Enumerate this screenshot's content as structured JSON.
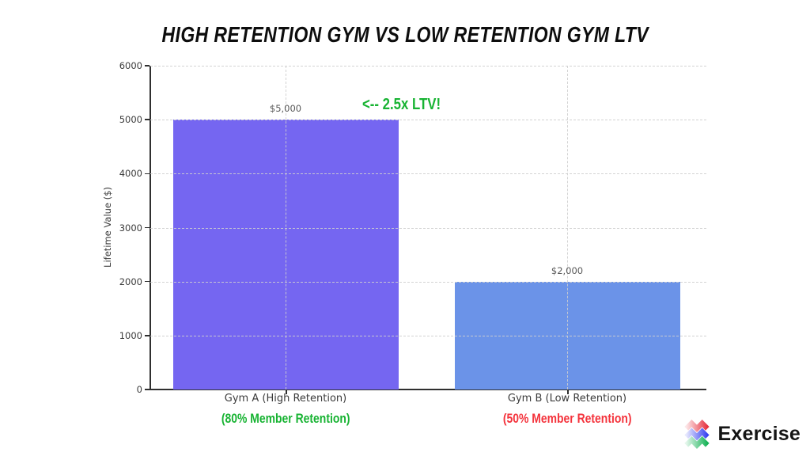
{
  "page": {
    "background": "#ffffff"
  },
  "chart_data": {
    "type": "bar",
    "title": "HIGH RETENTION GYM VS LOW RETENTION GYM LTV",
    "ylabel": "Lifetime Value ($)",
    "xlabel": "",
    "ylim": [
      0,
      6000
    ],
    "ytick_values": [
      0,
      1000,
      2000,
      3000,
      4000,
      5000,
      6000
    ],
    "categories": [
      "Gym A (High Retention)",
      "Gym B (Low Retention)"
    ],
    "values": [
      5000,
      2000
    ],
    "value_labels": [
      "$5,000",
      "$2,000"
    ],
    "bar_colors": [
      "#7566f1",
      "#6b93e8"
    ],
    "category_sublabels": [
      {
        "text": "(80% Member Retention)",
        "color": "#17b332"
      },
      {
        "text": "(50% Member Retention)",
        "color": "#f4333c"
      }
    ],
    "annotation": {
      "text": "<-- 2.5x LTV!",
      "color": "#17b332"
    },
    "grid": "dashed",
    "legend": "none",
    "axis_text_color": "#3b3b3b",
    "value_label_color": "#585858"
  },
  "branding": {
    "name": "Exercise",
    "icon": "zigzag-chevrons-icon",
    "icon_colors": [
      "#e63240",
      "#3742f0",
      "#17b357"
    ],
    "text_color": "#141414"
  }
}
